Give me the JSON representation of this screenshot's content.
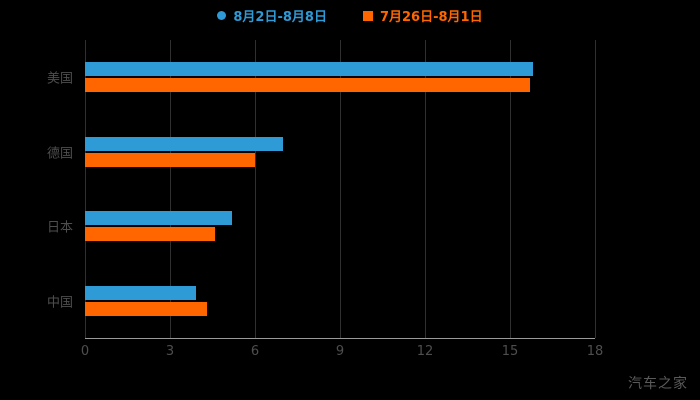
{
  "chart_data": {
    "type": "bar",
    "orientation": "horizontal",
    "title": "",
    "categories": [
      "美国",
      "德国",
      "日本",
      "中国"
    ],
    "series": [
      {
        "name": "8月2日-8月8日",
        "color": "#2e9bd6",
        "marker": "circle",
        "values": [
          15.8,
          7.0,
          5.2,
          3.9
        ]
      },
      {
        "name": "7月26日-8月1日",
        "color": "#ff6600",
        "marker": "square",
        "values": [
          15.7,
          6.0,
          4.6,
          4.3
        ]
      }
    ],
    "xlim": [
      0,
      18
    ],
    "xticks": [
      0,
      3,
      6,
      9,
      12,
      15,
      18
    ],
    "grid": true,
    "legend_position": "top",
    "background_color": "#000000",
    "axis_text_color": "#4e4e4e",
    "watermark": "汽车之家"
  }
}
